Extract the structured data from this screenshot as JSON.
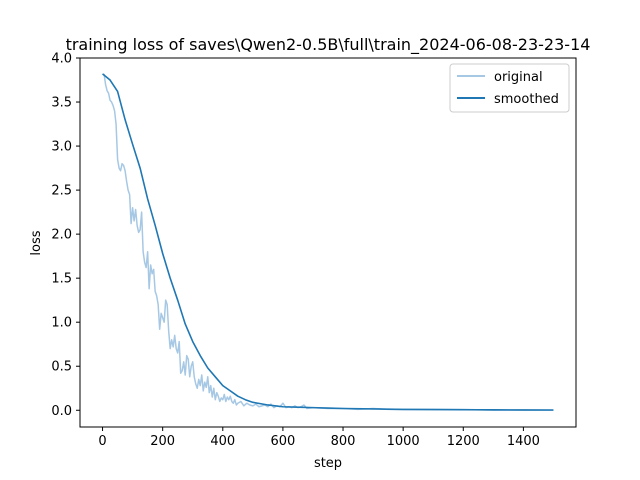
{
  "chart_data": {
    "type": "line",
    "title": "training loss of saves\\Qwen2-0.5B\\full\\train_2024-06-08-23-23-14",
    "xlabel": "step",
    "ylabel": "loss",
    "xlim": [
      -75,
      1575
    ],
    "ylim": [
      -0.19,
      4.0
    ],
    "xticks": [
      0,
      200,
      400,
      600,
      800,
      1000,
      1200,
      1400
    ],
    "yticks": [
      0.0,
      0.5,
      1.0,
      1.5,
      2.0,
      2.5,
      3.0,
      3.5,
      4.0
    ],
    "xtick_labels": [
      "0",
      "200",
      "400",
      "600",
      "800",
      "1000",
      "1200",
      "1400"
    ],
    "ytick_labels": [
      "0.0",
      "0.5",
      "1.0",
      "1.5",
      "2.0",
      "2.5",
      "3.0",
      "3.5",
      "4.0"
    ],
    "legend": {
      "placement": "top-right",
      "entries": [
        "original",
        "smoothed"
      ]
    },
    "grid": false,
    "series": [
      {
        "name": "original",
        "color": "#a6c8e4",
        "x": [
          5,
          10,
          15,
          20,
          25,
          30,
          35,
          40,
          45,
          50,
          55,
          60,
          65,
          70,
          75,
          80,
          85,
          90,
          95,
          100,
          105,
          110,
          115,
          120,
          125,
          130,
          135,
          140,
          145,
          150,
          155,
          160,
          165,
          170,
          175,
          180,
          185,
          190,
          195,
          200,
          205,
          210,
          215,
          220,
          225,
          230,
          235,
          240,
          245,
          250,
          255,
          260,
          265,
          270,
          275,
          280,
          285,
          290,
          295,
          300,
          305,
          310,
          315,
          320,
          325,
          330,
          335,
          340,
          345,
          350,
          355,
          360,
          365,
          370,
          375,
          380,
          385,
          390,
          395,
          400,
          405,
          410,
          415,
          420,
          425,
          430,
          435,
          440,
          445,
          450,
          460,
          470,
          480,
          490,
          500,
          510,
          520,
          530,
          540,
          550,
          560,
          570,
          580,
          590,
          600,
          610,
          620,
          630,
          640,
          650,
          660,
          670,
          680,
          700,
          750,
          800,
          850,
          900,
          950,
          1000,
          1100,
          1200,
          1300,
          1400,
          1500
        ],
        "y": [
          3.82,
          3.7,
          3.63,
          3.6,
          3.52,
          3.5,
          3.46,
          3.4,
          3.25,
          2.85,
          2.75,
          2.72,
          2.8,
          2.78,
          2.72,
          2.6,
          2.5,
          2.45,
          2.12,
          2.3,
          2.15,
          2.28,
          2.1,
          2.02,
          2.05,
          2.25,
          1.8,
          1.68,
          1.62,
          1.8,
          1.38,
          1.65,
          1.55,
          1.6,
          1.35,
          1.3,
          1.2,
          0.92,
          1.1,
          1.05,
          1.0,
          1.25,
          1.2,
          0.9,
          0.7,
          0.8,
          0.72,
          0.85,
          0.7,
          0.65,
          0.78,
          0.42,
          0.45,
          0.55,
          0.4,
          0.62,
          0.58,
          0.38,
          0.5,
          0.55,
          0.38,
          0.3,
          0.25,
          0.35,
          0.28,
          0.4,
          0.22,
          0.32,
          0.26,
          0.38,
          0.2,
          0.28,
          0.15,
          0.25,
          0.12,
          0.2,
          0.16,
          0.1,
          0.14,
          0.12,
          0.18,
          0.1,
          0.15,
          0.12,
          0.16,
          0.1,
          0.08,
          0.12,
          0.06,
          0.08,
          0.1,
          0.05,
          0.08,
          0.06,
          0.05,
          0.07,
          0.04,
          0.05,
          0.06,
          0.04,
          0.07,
          0.03,
          0.05,
          0.04,
          0.08,
          0.03,
          0.04,
          0.03,
          0.05,
          0.03,
          0.04,
          0.06,
          0.02,
          0.03,
          0.02,
          0.02,
          0.01,
          0.02,
          0.01,
          0.01,
          0.01,
          0.01,
          0.0,
          0.0,
          0.0
        ]
      },
      {
        "name": "smoothed",
        "color": "#1f77b4",
        "x": [
          0,
          25,
          50,
          75,
          100,
          125,
          150,
          175,
          200,
          225,
          250,
          275,
          300,
          325,
          350,
          375,
          400,
          425,
          450,
          475,
          500,
          550,
          600,
          650,
          700,
          750,
          800,
          900,
          1000,
          1100,
          1200,
          1300,
          1400,
          1500
        ],
        "y": [
          3.82,
          3.75,
          3.62,
          3.3,
          3.02,
          2.75,
          2.4,
          2.1,
          1.78,
          1.5,
          1.25,
          0.98,
          0.78,
          0.62,
          0.48,
          0.38,
          0.28,
          0.22,
          0.16,
          0.12,
          0.09,
          0.06,
          0.04,
          0.035,
          0.03,
          0.025,
          0.02,
          0.015,
          0.01,
          0.008,
          0.006,
          0.005,
          0.004,
          0.003
        ]
      }
    ]
  }
}
